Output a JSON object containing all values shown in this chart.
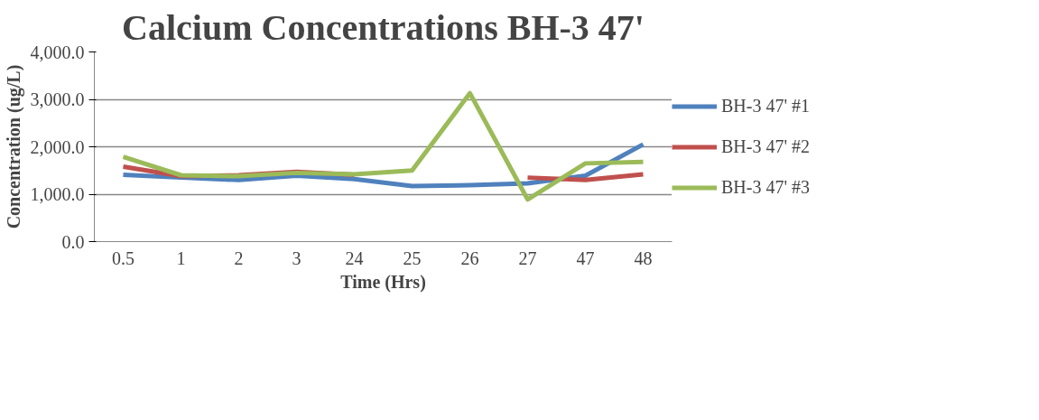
{
  "chart_data": {
    "type": "line",
    "title": "Calcium Concentrations BH-3 47'",
    "xlabel": "Time (Hrs)",
    "ylabel": "Concentration (ug/L)",
    "categories": [
      "0.5",
      "1",
      "2",
      "3",
      "24",
      "25",
      "26",
      "27",
      "47",
      "48"
    ],
    "series": [
      {
        "name": "BH-3 47' #1",
        "color": "#4f81bd",
        "values": [
          1410,
          1350,
          1300,
          1390,
          1320,
          1170,
          1190,
          1230,
          1390,
          2050
        ]
      },
      {
        "name": "BH-3 47' #2",
        "color": "#c0504d",
        "values": [
          1580,
          1380,
          1400,
          1470,
          1410,
          null,
          null,
          1350,
          1300,
          1420
        ]
      },
      {
        "name": "BH-3 47' #3",
        "color": "#9bbb59",
        "values": [
          1790,
          1400,
          1380,
          1450,
          1420,
          1500,
          3130,
          890,
          1650,
          1680
        ]
      }
    ],
    "ylim": [
      0,
      4000
    ],
    "yticks": [
      {
        "value": 0,
        "label": "0.0"
      },
      {
        "value": 1000,
        "label": "1,000.0"
      },
      {
        "value": 2000,
        "label": "2,000.0"
      },
      {
        "value": 3000,
        "label": "3,000.0"
      },
      {
        "value": 4000,
        "label": "4,000.0"
      }
    ],
    "grid": "y",
    "legend": "right",
    "marker": "none",
    "line_style": "solid"
  }
}
